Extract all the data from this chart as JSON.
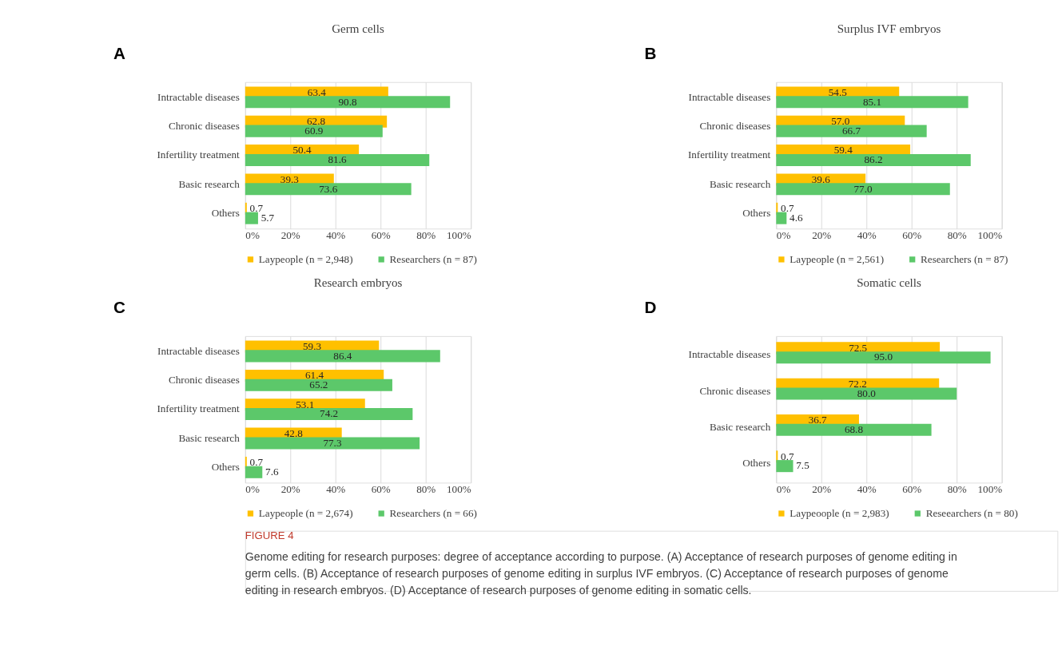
{
  "chart_data": [
    {
      "type": "bar",
      "orientation": "horizontal",
      "title": "Germ cells",
      "annotations": [
        "A"
      ],
      "categories": [
        "Intractable diseases",
        "Chronic diseases",
        "Infertility treatment",
        "Basic research",
        "Others"
      ],
      "series": [
        {
          "name": "Laypeople (n = 2,948)",
          "color": "#ffc000",
          "values": [
            63.4,
            62.8,
            50.4,
            39.3,
            0.7
          ],
          "value_labels": [
            "63.4",
            "62.8",
            "50.4",
            "39.3",
            "0.7"
          ]
        },
        {
          "name": "Researchers (n = 87)",
          "color": "#5cc86a",
          "values": [
            90.8,
            60.9,
            81.6,
            73.6,
            5.7
          ],
          "value_labels": [
            "90.8",
            "60.9",
            "81.6",
            "73.6",
            "5.7"
          ]
        }
      ],
      "xlim": [
        0,
        100
      ],
      "xticks": [
        {
          "value": 0,
          "label": "0%"
        },
        {
          "value": 20,
          "label": "20%"
        },
        {
          "value": 40,
          "label": "40%"
        },
        {
          "value": 60,
          "label": "60%"
        },
        {
          "value": 80,
          "label": "80%"
        },
        {
          "value": 100,
          "label": "100%"
        }
      ],
      "grid": "x",
      "legend": "bottom"
    },
    {
      "type": "bar",
      "orientation": "horizontal",
      "title": "Surplus IVF embryos",
      "annotations": [
        "B"
      ],
      "categories": [
        "Intractable diseases",
        "Chronic diseases",
        "Infertility treatment",
        "Basic research",
        "Others"
      ],
      "series": [
        {
          "name": "Laypeople (n = 2,561)",
          "color": "#ffc000",
          "values": [
            54.5,
            57.0,
            59.4,
            39.6,
            0.7
          ],
          "value_labels": [
            "54.5",
            "57.0",
            "59.4",
            "39.6",
            "0.7"
          ]
        },
        {
          "name": "Researchers (n = 87)",
          "color": "#5cc86a",
          "values": [
            85.1,
            66.7,
            86.2,
            77.0,
            4.6
          ],
          "value_labels": [
            "85.1",
            "66.7",
            "86.2",
            "77.0",
            "4.6"
          ]
        }
      ],
      "xlim": [
        0,
        100
      ],
      "xticks": [
        {
          "value": 0,
          "label": "0%"
        },
        {
          "value": 20,
          "label": "20%"
        },
        {
          "value": 40,
          "label": "40%"
        },
        {
          "value": 60,
          "label": "60%"
        },
        {
          "value": 80,
          "label": "80%"
        },
        {
          "value": 100,
          "label": "100%"
        }
      ],
      "grid": "x",
      "legend": "bottom"
    },
    {
      "type": "bar",
      "orientation": "horizontal",
      "title": "Research embryos",
      "annotations": [
        "C"
      ],
      "categories": [
        "Intractable diseases",
        "Chronic diseases",
        "Infertility treatment",
        "Basic research",
        "Others"
      ],
      "series": [
        {
          "name": "Laypeople (n = 2,674)",
          "color": "#ffc000",
          "values": [
            59.3,
            61.4,
            53.1,
            42.8,
            0.7
          ],
          "value_labels": [
            "59.3",
            "61.4",
            "53.1",
            "42.8",
            "0.7"
          ]
        },
        {
          "name": "Researchers (n = 66)",
          "color": "#5cc86a",
          "values": [
            86.4,
            65.2,
            74.2,
            77.3,
            7.6
          ],
          "value_labels": [
            "86.4",
            "65.2",
            "74.2",
            "77.3",
            "7.6"
          ]
        }
      ],
      "xlim": [
        0,
        100
      ],
      "xticks": [
        {
          "value": 0,
          "label": "0%"
        },
        {
          "value": 20,
          "label": "20%"
        },
        {
          "value": 40,
          "label": "40%"
        },
        {
          "value": 60,
          "label": "60%"
        },
        {
          "value": 80,
          "label": "80%"
        },
        {
          "value": 100,
          "label": "100%"
        }
      ],
      "grid": "x",
      "legend": "bottom"
    },
    {
      "type": "bar",
      "orientation": "horizontal",
      "title": "Somatic cells",
      "annotations": [
        "D"
      ],
      "categories": [
        "Intractable diseases",
        "Chronic diseases",
        "Basic research",
        "Others"
      ],
      "series": [
        {
          "name": "Laypeoople (n = 2,983)",
          "color": "#ffc000",
          "values": [
            72.5,
            72.2,
            36.7,
            0.7
          ],
          "value_labels": [
            "72.5",
            "72.2",
            "36.7",
            "0.7"
          ]
        },
        {
          "name": "Reseearchers (n = 80)",
          "color": "#5cc86a",
          "values": [
            95.0,
            80.0,
            68.8,
            7.5
          ],
          "value_labels": [
            "95.0",
            "80.0",
            "68.8",
            "7.5"
          ]
        }
      ],
      "xlim": [
        0,
        100
      ],
      "xticks": [
        {
          "value": 0,
          "label": "0%"
        },
        {
          "value": 20,
          "label": "20%"
        },
        {
          "value": 40,
          "label": "40%"
        },
        {
          "value": 60,
          "label": "60%"
        },
        {
          "value": 80,
          "label": "80%"
        },
        {
          "value": 100,
          "label": "100%"
        }
      ],
      "grid": "x",
      "legend": "bottom"
    },
    {
      "type": "other",
      "title": "FIGURE 4",
      "annotations": [
        "Genome editing for research purposes: degree of acceptance according to purpose. (A) Acceptance of research purposes of genome editing in germ cells. (B) Acceptance of research purposes of genome editing in surplus IVF embryos. (C) Acceptance of research purposes of genome editing in research embryos. (D) Acceptance of research purposes of genome editing in somatic cells."
      ]
    }
  ]
}
